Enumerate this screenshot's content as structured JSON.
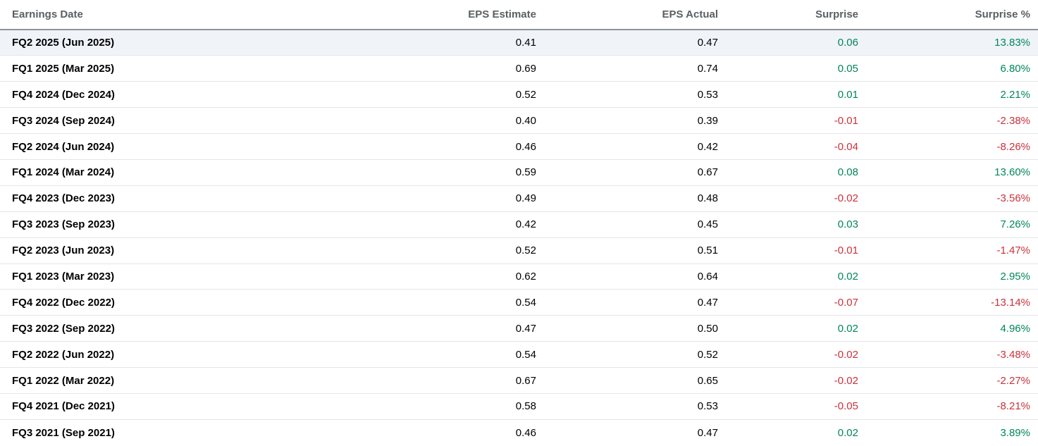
{
  "table": {
    "columns": [
      {
        "id": "earnings_date",
        "label": "Earnings Date"
      },
      {
        "id": "eps_estimate",
        "label": "EPS Estimate"
      },
      {
        "id": "eps_actual",
        "label": "EPS Actual"
      },
      {
        "id": "surprise",
        "label": "Surprise"
      },
      {
        "id": "surprise_pct",
        "label": "Surprise %"
      }
    ],
    "rows": [
      {
        "earnings_date": "FQ2 2025 (Jun 2025)",
        "eps_estimate": "0.41",
        "eps_actual": "0.47",
        "surprise": "0.06",
        "surprise_pct": "13.83%",
        "trend": "up",
        "highlighted": true
      },
      {
        "earnings_date": "FQ1 2025 (Mar 2025)",
        "eps_estimate": "0.69",
        "eps_actual": "0.74",
        "surprise": "0.05",
        "surprise_pct": "6.80%",
        "trend": "up",
        "highlighted": false
      },
      {
        "earnings_date": "FQ4 2024 (Dec 2024)",
        "eps_estimate": "0.52",
        "eps_actual": "0.53",
        "surprise": "0.01",
        "surprise_pct": "2.21%",
        "trend": "up",
        "highlighted": false
      },
      {
        "earnings_date": "FQ3 2024 (Sep 2024)",
        "eps_estimate": "0.40",
        "eps_actual": "0.39",
        "surprise": "-0.01",
        "surprise_pct": "-2.38%",
        "trend": "down",
        "highlighted": false
      },
      {
        "earnings_date": "FQ2 2024 (Jun 2024)",
        "eps_estimate": "0.46",
        "eps_actual": "0.42",
        "surprise": "-0.04",
        "surprise_pct": "-8.26%",
        "trend": "down",
        "highlighted": false
      },
      {
        "earnings_date": "FQ1 2024 (Mar 2024)",
        "eps_estimate": "0.59",
        "eps_actual": "0.67",
        "surprise": "0.08",
        "surprise_pct": "13.60%",
        "trend": "up",
        "highlighted": false
      },
      {
        "earnings_date": "FQ4 2023 (Dec 2023)",
        "eps_estimate": "0.49",
        "eps_actual": "0.48",
        "surprise": "-0.02",
        "surprise_pct": "-3.56%",
        "trend": "down",
        "highlighted": false
      },
      {
        "earnings_date": "FQ3 2023 (Sep 2023)",
        "eps_estimate": "0.42",
        "eps_actual": "0.45",
        "surprise": "0.03",
        "surprise_pct": "7.26%",
        "trend": "up",
        "highlighted": false
      },
      {
        "earnings_date": "FQ2 2023 (Jun 2023)",
        "eps_estimate": "0.52",
        "eps_actual": "0.51",
        "surprise": "-0.01",
        "surprise_pct": "-1.47%",
        "trend": "down",
        "highlighted": false
      },
      {
        "earnings_date": "FQ1 2023 (Mar 2023)",
        "eps_estimate": "0.62",
        "eps_actual": "0.64",
        "surprise": "0.02",
        "surprise_pct": "2.95%",
        "trend": "up",
        "highlighted": false
      },
      {
        "earnings_date": "FQ4 2022 (Dec 2022)",
        "eps_estimate": "0.54",
        "eps_actual": "0.47",
        "surprise": "-0.07",
        "surprise_pct": "-13.14%",
        "trend": "down",
        "highlighted": false
      },
      {
        "earnings_date": "FQ3 2022 (Sep 2022)",
        "eps_estimate": "0.47",
        "eps_actual": "0.50",
        "surprise": "0.02",
        "surprise_pct": "4.96%",
        "trend": "up",
        "highlighted": false
      },
      {
        "earnings_date": "FQ2 2022 (Jun 2022)",
        "eps_estimate": "0.54",
        "eps_actual": "0.52",
        "surprise": "-0.02",
        "surprise_pct": "-3.48%",
        "trend": "down",
        "highlighted": false
      },
      {
        "earnings_date": "FQ1 2022 (Mar 2022)",
        "eps_estimate": "0.67",
        "eps_actual": "0.65",
        "surprise": "-0.02",
        "surprise_pct": "-2.27%",
        "trend": "down",
        "highlighted": false
      },
      {
        "earnings_date": "FQ4 2021 (Dec 2021)",
        "eps_estimate": "0.58",
        "eps_actual": "0.53",
        "surprise": "-0.05",
        "surprise_pct": "-8.21%",
        "trend": "down",
        "highlighted": false
      },
      {
        "earnings_date": "FQ3 2021 (Sep 2021)",
        "eps_estimate": "0.46",
        "eps_actual": "0.47",
        "surprise": "0.02",
        "surprise_pct": "3.89%",
        "trend": "up",
        "highlighted": false
      }
    ]
  },
  "colors": {
    "positive": "#00865a",
    "negative": "#c9323c",
    "header_text": "#5b5f62",
    "header_border": "#919498",
    "row_border": "#e2e5ea",
    "row_highlight_bg": "#f0f3f8",
    "row_text": "#000000"
  }
}
